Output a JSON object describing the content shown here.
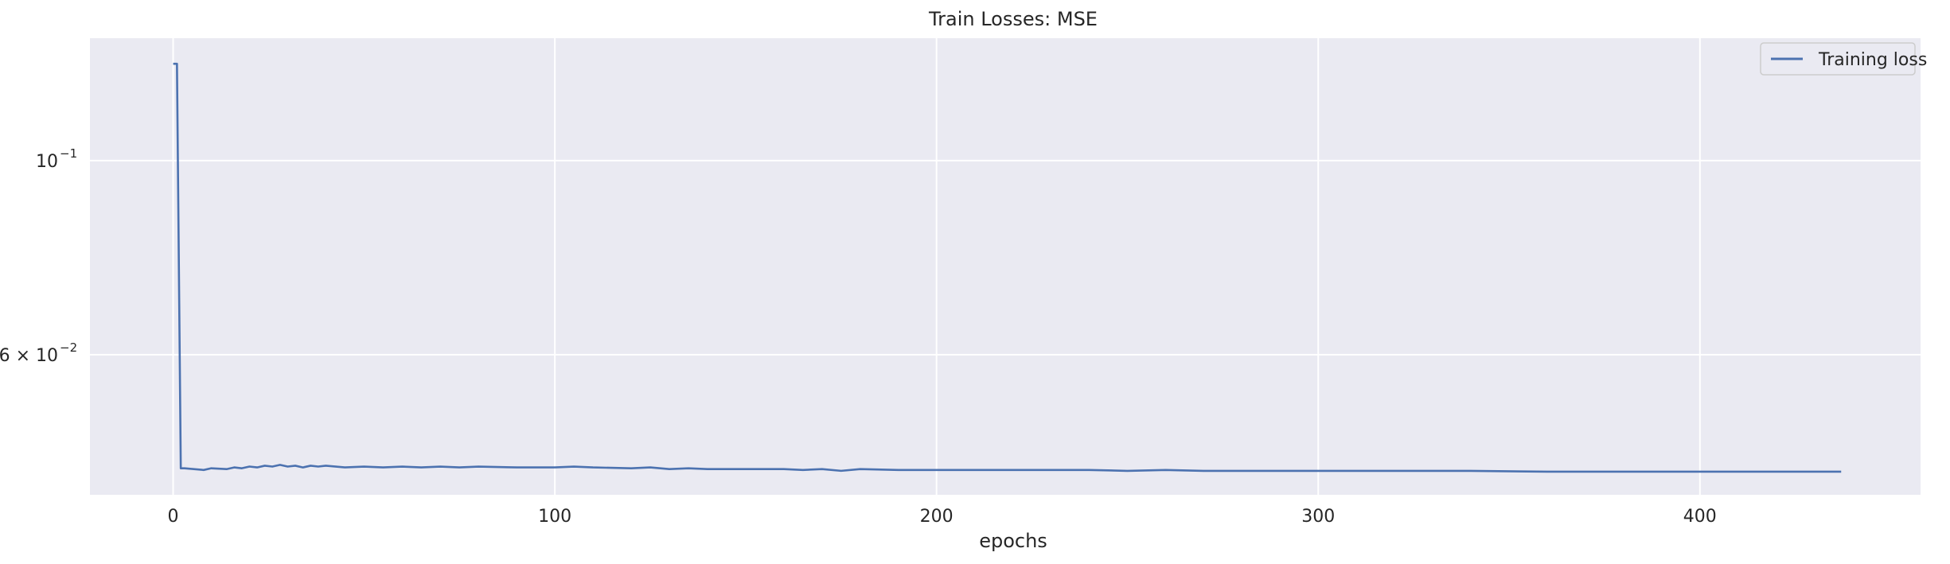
{
  "chart_data": {
    "type": "line",
    "title": "Train Losses:  MSE",
    "xlabel": "epochs",
    "ylabel": "",
    "xlim": [
      -21.8,
      457.8
    ],
    "ylim": [
      0.0415,
      0.138
    ],
    "yscale": "log",
    "grid": true,
    "legend_position": "upper right",
    "xticks": [
      0,
      100,
      200,
      300,
      400
    ],
    "yticks": [
      {
        "value": 0.1,
        "label": "10",
        "exp": "−1"
      },
      {
        "value": 0.06,
        "label": "6 × 10",
        "exp": "−2"
      }
    ],
    "series": [
      {
        "name": "Training loss",
        "color": "#4c72b0",
        "x": [
          0,
          1,
          2,
          3,
          8,
          10,
          14,
          16,
          18,
          20,
          22,
          24,
          26,
          28,
          30,
          32,
          34,
          36,
          38,
          40,
          45,
          50,
          55,
          60,
          65,
          70,
          75,
          80,
          90,
          100,
          105,
          110,
          120,
          125,
          130,
          135,
          140,
          150,
          160,
          165,
          170,
          175,
          180,
          190,
          200,
          210,
          220,
          230,
          240,
          250,
          260,
          270,
          280,
          300,
          320,
          340,
          360,
          380,
          400,
          420,
          437
        ],
        "y": [
          0.129,
          0.129,
          0.0445,
          0.0445,
          0.0443,
          0.0445,
          0.0444,
          0.0446,
          0.0445,
          0.0447,
          0.0446,
          0.0448,
          0.0447,
          0.0449,
          0.0447,
          0.0448,
          0.0446,
          0.0448,
          0.0447,
          0.0448,
          0.0446,
          0.0447,
          0.0446,
          0.0447,
          0.0446,
          0.0447,
          0.0446,
          0.0447,
          0.0446,
          0.0446,
          0.0447,
          0.0446,
          0.0445,
          0.0446,
          0.0444,
          0.0445,
          0.0444,
          0.0444,
          0.0444,
          0.0443,
          0.0444,
          0.0442,
          0.0444,
          0.0443,
          0.0443,
          0.0443,
          0.0443,
          0.0443,
          0.0443,
          0.0442,
          0.0443,
          0.0442,
          0.0442,
          0.0442,
          0.0442,
          0.0442,
          0.0441,
          0.0441,
          0.0441,
          0.0441,
          0.0441
        ]
      }
    ]
  }
}
